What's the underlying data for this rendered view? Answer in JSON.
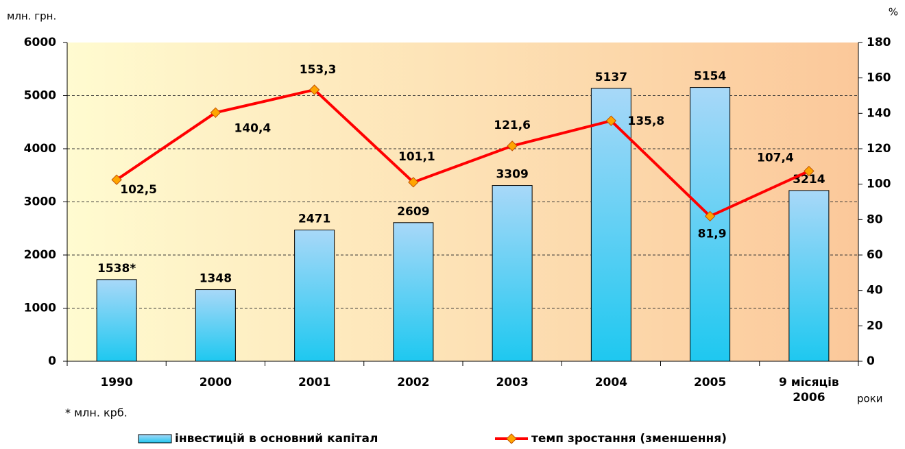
{
  "chart_data": {
    "type": "bar-line",
    "y_label": "млн. грн.",
    "y2_label": "%",
    "x_label": "роки",
    "note": "* млн. крб.",
    "categories": [
      "1990",
      "2000",
      "2001",
      "2002",
      "2003",
      "2004",
      "2005",
      "9 місяців 2006"
    ],
    "series": [
      {
        "name": "інвестицій в основний капітал",
        "type": "bar",
        "color": "#33ccf0",
        "values": [
          1538,
          1348,
          2471,
          2609,
          3309,
          5137,
          5154,
          3214
        ],
        "value_labels": [
          "1538*",
          "1348",
          "2471",
          "2609",
          "3309",
          "5137",
          "5154",
          "3214"
        ]
      },
      {
        "name": "темп зростання (зменшення)",
        "type": "line",
        "axis": "y2",
        "color": "#ff0000",
        "marker_color": "#ffa500",
        "values": [
          102.5,
          140.4,
          153.3,
          101.1,
          121.6,
          135.8,
          81.9,
          107.4
        ],
        "value_labels": [
          "102,5",
          "140,4",
          "153,3",
          "101,1",
          "121,6",
          "135,8",
          "81,9",
          "107,4"
        ]
      }
    ],
    "ylim": [
      0,
      6000
    ],
    "yticks": [
      0,
      1000,
      2000,
      3000,
      4000,
      5000,
      6000
    ],
    "y2lim": [
      0,
      180
    ],
    "y2ticks": [
      0,
      20,
      40,
      60,
      80,
      100,
      120,
      140,
      160,
      180
    ],
    "grid": true
  }
}
